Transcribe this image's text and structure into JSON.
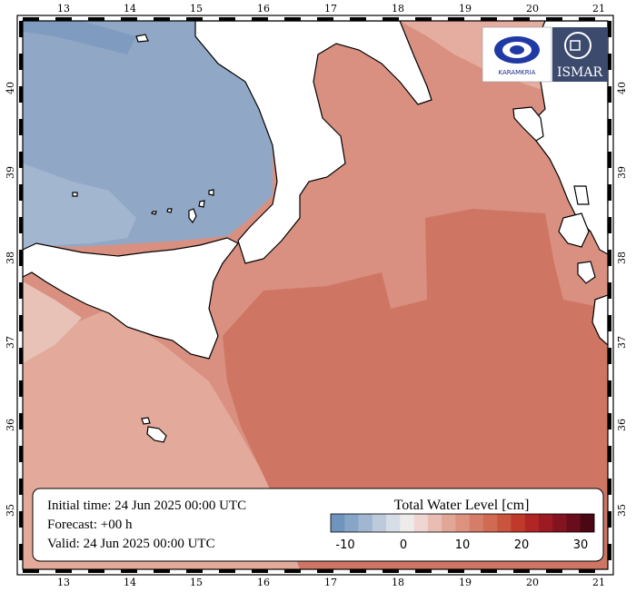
{
  "map": {
    "lon_ticks": [
      "13",
      "14",
      "15",
      "16",
      "17",
      "18",
      "19",
      "20",
      "21"
    ],
    "lat_ticks": [
      "35",
      "36",
      "37",
      "38",
      "39",
      "40"
    ]
  },
  "info": {
    "initial_time": "Initial time: 24 Jun 2025 00:00 UTC",
    "forecast": "Forecast: +00 h",
    "valid": "Valid: 24 Jun 2025 00:00 UTC"
  },
  "legend": {
    "title": "Total Water Level [cm]",
    "ticks": [
      "-10",
      "0",
      "10",
      "20",
      "30"
    ],
    "colors": [
      "#6f95bf",
      "#87a5c7",
      "#a1b7d1",
      "#bccadb",
      "#d7dde6",
      "#eeeceb",
      "#efd6d2",
      "#e9bdb3",
      "#e2a697",
      "#dd927f",
      "#d67d69",
      "#d06a53",
      "#c9553e",
      "#c03a2c",
      "#b22525",
      "#9c1a22",
      "#841320",
      "#690d1c",
      "#4a0714"
    ]
  },
  "logos": {
    "left_text": "KARAMKRIA",
    "right_text": "ISMAR"
  }
}
